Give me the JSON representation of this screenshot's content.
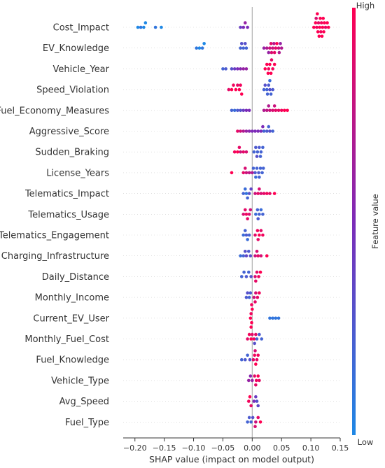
{
  "chart_data": {
    "type": "scatter",
    "subtype": "shap-beeswarm-summary",
    "xlabel": "SHAP value (impact on model output)",
    "xlim": [
      -0.22,
      0.15
    ],
    "x_ticks": [
      -0.2,
      -0.15,
      -0.1,
      -0.05,
      0.0,
      0.05,
      0.1,
      0.15
    ],
    "x_tick_labels": [
      "−0.20",
      "−0.15",
      "−0.10",
      "−0.05",
      "0.00",
      "0.05",
      "0.10",
      "0.15"
    ],
    "grid": false,
    "zero_line": true,
    "colorbar": {
      "label": "Feature value",
      "high_label": "High",
      "low_label": "Low",
      "low_color": "#1e88e5",
      "mid_color": "#7c2bb8",
      "high_color": "#ff0052",
      "placement": "right"
    },
    "features": [
      {
        "name": "Cost_Impact",
        "points": [
          [
            -0.195,
            0.0
          ],
          [
            -0.19,
            0.1
          ],
          [
            -0.185,
            0.0
          ],
          [
            -0.182,
            0.0
          ],
          [
            -0.165,
            0.1
          ],
          [
            -0.155,
            0.0
          ],
          [
            -0.02,
            0.4
          ],
          [
            -0.015,
            0.5
          ],
          [
            -0.012,
            0.6
          ],
          [
            -0.008,
            0.5
          ],
          [
            0.105,
            1.0
          ],
          [
            0.108,
            1.0
          ],
          [
            0.11,
            0.95
          ],
          [
            0.112,
            1.0
          ],
          [
            0.113,
            0.9
          ],
          [
            0.115,
            1.0
          ],
          [
            0.116,
            1.0
          ],
          [
            0.118,
            0.95
          ],
          [
            0.12,
            1.0
          ],
          [
            0.122,
            1.0
          ],
          [
            0.125,
            0.9
          ],
          [
            0.128,
            1.0
          ],
          [
            0.13,
            1.0
          ],
          [
            0.114,
            1.0
          ],
          [
            0.117,
            0.95
          ],
          [
            0.119,
            1.0
          ],
          [
            0.121,
            1.0
          ],
          [
            0.109,
            0.85
          ],
          [
            0.111,
            1.0
          ],
          [
            0.123,
            1.0
          ]
        ]
      },
      {
        "name": "EV_Knowledge",
        "points": [
          [
            -0.095,
            0.1
          ],
          [
            -0.09,
            0.0
          ],
          [
            -0.085,
            0.1
          ],
          [
            -0.082,
            0.0
          ],
          [
            -0.02,
            0.2
          ],
          [
            -0.018,
            0.3
          ],
          [
            -0.015,
            0.2
          ],
          [
            -0.012,
            0.3
          ],
          [
            -0.01,
            0.2
          ],
          [
            0.02,
            0.6
          ],
          [
            0.025,
            0.7
          ],
          [
            0.03,
            0.8
          ],
          [
            0.032,
            0.9
          ],
          [
            0.035,
            0.8
          ],
          [
            0.037,
            0.7
          ],
          [
            0.04,
            0.9
          ],
          [
            0.042,
            1.0
          ],
          [
            0.045,
            0.8
          ],
          [
            0.048,
            0.6
          ],
          [
            0.05,
            0.7
          ],
          [
            0.028,
            0.6
          ],
          [
            0.038,
            0.9
          ],
          [
            0.046,
            0.7
          ],
          [
            0.033,
            0.85
          ]
        ]
      },
      {
        "name": "Vehicle_Year",
        "points": [
          [
            -0.05,
            0.2
          ],
          [
            -0.045,
            0.25
          ],
          [
            -0.035,
            0.3
          ],
          [
            -0.03,
            0.4
          ],
          [
            -0.025,
            0.5
          ],
          [
            -0.02,
            0.55
          ],
          [
            -0.015,
            0.6
          ],
          [
            -0.01,
            0.6
          ],
          [
            0.022,
            1.0
          ],
          [
            0.025,
            1.0
          ],
          [
            0.028,
            0.95
          ],
          [
            0.03,
            1.0
          ],
          [
            0.032,
            1.0
          ],
          [
            0.035,
            0.95
          ],
          [
            0.038,
            1.0
          ],
          [
            0.027,
            1.0
          ],
          [
            0.033,
            0.9
          ]
        ]
      },
      {
        "name": "Speed_Violation",
        "points": [
          [
            -0.04,
            0.9
          ],
          [
            -0.035,
            1.0
          ],
          [
            -0.032,
            0.95
          ],
          [
            -0.028,
            1.0
          ],
          [
            -0.025,
            0.9
          ],
          [
            -0.022,
            1.0
          ],
          [
            -0.02,
            0.95
          ],
          [
            -0.018,
            1.0
          ],
          [
            0.02,
            0.2
          ],
          [
            0.022,
            0.3
          ],
          [
            0.025,
            0.2
          ],
          [
            0.028,
            0.25
          ],
          [
            0.03,
            0.3
          ],
          [
            0.032,
            0.2
          ],
          [
            0.035,
            0.25
          ],
          [
            0.026,
            0.2
          ],
          [
            0.03,
            0.15
          ]
        ]
      },
      {
        "name": "Fuel_Economy_Measures",
        "points": [
          [
            -0.035,
            0.2
          ],
          [
            -0.03,
            0.15
          ],
          [
            -0.025,
            0.25
          ],
          [
            -0.02,
            0.3
          ],
          [
            -0.015,
            0.4
          ],
          [
            -0.01,
            0.5
          ],
          [
            -0.005,
            0.5
          ],
          [
            0.02,
            0.7
          ],
          [
            0.025,
            0.75
          ],
          [
            0.03,
            0.8
          ],
          [
            0.035,
            0.85
          ],
          [
            0.04,
            0.9
          ],
          [
            0.045,
            0.9
          ],
          [
            0.05,
            0.95
          ],
          [
            0.055,
            1.0
          ],
          [
            0.06,
            1.0
          ],
          [
            0.028,
            0.7
          ],
          [
            0.038,
            0.8
          ]
        ]
      },
      {
        "name": "Aggressive_Score",
        "points": [
          [
            -0.025,
            0.9
          ],
          [
            -0.02,
            0.8
          ],
          [
            -0.015,
            0.7
          ],
          [
            -0.01,
            0.6
          ],
          [
            -0.005,
            0.55
          ],
          [
            0.0,
            0.5
          ],
          [
            0.005,
            0.5
          ],
          [
            0.01,
            0.5
          ],
          [
            0.015,
            0.5
          ],
          [
            0.018,
            0.5
          ],
          [
            0.02,
            0.2
          ],
          [
            0.025,
            0.25
          ],
          [
            0.03,
            0.3
          ],
          [
            0.035,
            0.2
          ],
          [
            0.028,
            0.2
          ]
        ]
      },
      {
        "name": "Sudden_Braking",
        "points": [
          [
            -0.03,
            0.95
          ],
          [
            -0.025,
            1.0
          ],
          [
            -0.022,
            0.9
          ],
          [
            -0.02,
            0.8
          ],
          [
            -0.015,
            0.9
          ],
          [
            -0.01,
            0.85
          ],
          [
            0.003,
            0.2
          ],
          [
            0.006,
            0.25
          ],
          [
            0.009,
            0.2
          ],
          [
            0.012,
            0.25
          ],
          [
            0.015,
            0.2
          ],
          [
            0.018,
            0.2
          ],
          [
            0.008,
            0.3
          ],
          [
            0.014,
            0.2
          ]
        ]
      },
      {
        "name": "License_Years",
        "points": [
          [
            -0.035,
            1.0
          ],
          [
            -0.015,
            0.9
          ],
          [
            -0.012,
            0.85
          ],
          [
            -0.01,
            0.8
          ],
          [
            -0.005,
            0.75
          ],
          [
            0.0,
            0.7
          ],
          [
            0.002,
            0.2
          ],
          [
            0.005,
            0.25
          ],
          [
            0.008,
            0.2
          ],
          [
            0.011,
            0.25
          ],
          [
            0.014,
            0.2
          ],
          [
            0.017,
            0.2
          ],
          [
            0.019,
            0.2
          ],
          [
            0.006,
            0.15
          ],
          [
            0.012,
            0.2
          ]
        ]
      },
      {
        "name": "Telematics_Impact",
        "points": [
          [
            -0.015,
            0.2
          ],
          [
            -0.012,
            0.15
          ],
          [
            -0.01,
            0.1
          ],
          [
            -0.008,
            0.2
          ],
          [
            -0.005,
            0.3
          ],
          [
            -0.002,
            0.35
          ],
          [
            0.005,
            0.8
          ],
          [
            0.01,
            0.9
          ],
          [
            0.015,
            0.85
          ],
          [
            0.02,
            0.9
          ],
          [
            0.025,
            0.95
          ],
          [
            0.03,
            0.9
          ],
          [
            0.038,
            1.0
          ],
          [
            0.012,
            0.85
          ]
        ]
      },
      {
        "name": "Telematics_Usage",
        "points": [
          [
            -0.015,
            0.85
          ],
          [
            -0.012,
            0.9
          ],
          [
            -0.01,
            0.95
          ],
          [
            -0.008,
            0.9
          ],
          [
            -0.005,
            0.85
          ],
          [
            -0.003,
            0.8
          ],
          [
            0.006,
            0.15
          ],
          [
            0.009,
            0.2
          ],
          [
            0.012,
            0.2
          ],
          [
            0.015,
            0.15
          ],
          [
            0.018,
            0.2
          ],
          [
            0.01,
            0.25
          ]
        ]
      },
      {
        "name": "Telematics_Engagement",
        "points": [
          [
            -0.015,
            0.15
          ],
          [
            -0.012,
            0.2
          ],
          [
            -0.01,
            0.25
          ],
          [
            -0.008,
            0.15
          ],
          [
            -0.005,
            0.2
          ],
          [
            0.005,
            0.9
          ],
          [
            0.009,
            0.95
          ],
          [
            0.012,
            1.0
          ],
          [
            0.015,
            0.9
          ],
          [
            0.018,
            0.95
          ],
          [
            0.01,
            0.9
          ]
        ]
      },
      {
        "name": "Charging_Infrastructure",
        "points": [
          [
            -0.02,
            0.15
          ],
          [
            -0.015,
            0.2
          ],
          [
            -0.012,
            0.3
          ],
          [
            -0.01,
            0.35
          ],
          [
            -0.006,
            0.25
          ],
          [
            -0.003,
            0.3
          ],
          [
            0.005,
            0.8
          ],
          [
            0.01,
            0.9
          ],
          [
            0.015,
            0.85
          ],
          [
            0.025,
            1.0
          ],
          [
            0.008,
            0.85
          ]
        ]
      },
      {
        "name": "Daily_Distance",
        "points": [
          [
            -0.018,
            0.2
          ],
          [
            -0.014,
            0.2
          ],
          [
            -0.01,
            0.25
          ],
          [
            -0.006,
            0.2
          ],
          [
            -0.002,
            0.3
          ],
          [
            0.005,
            0.85
          ],
          [
            0.008,
            0.9
          ],
          [
            0.011,
            0.95
          ],
          [
            0.014,
            1.0
          ],
          [
            0.006,
            0.9
          ]
        ]
      },
      {
        "name": "Monthly_Income",
        "points": [
          [
            -0.01,
            0.25
          ],
          [
            -0.008,
            0.3
          ],
          [
            -0.005,
            0.2
          ],
          [
            -0.003,
            0.25
          ],
          [
            0.003,
            0.8
          ],
          [
            0.006,
            0.85
          ],
          [
            0.009,
            0.9
          ],
          [
            0.012,
            0.95
          ],
          [
            0.005,
            0.9
          ]
        ]
      },
      {
        "name": "Current_EV_User",
        "points": [
          [
            -0.003,
            1.0
          ],
          [
            -0.002,
            0.95
          ],
          [
            -0.001,
            1.0
          ],
          [
            0.0,
            1.0
          ],
          [
            -0.002,
            1.0
          ],
          [
            -0.001,
            0.95
          ],
          [
            0.03,
            0.1
          ],
          [
            0.035,
            0.1
          ],
          [
            0.04,
            0.1
          ],
          [
            0.045,
            0.1
          ]
        ]
      },
      {
        "name": "Monthly_Fuel_Cost",
        "points": [
          [
            -0.008,
            0.9
          ],
          [
            -0.005,
            0.95
          ],
          [
            -0.002,
            1.0
          ],
          [
            0.0,
            0.9
          ],
          [
            0.003,
            0.95
          ],
          [
            0.006,
            0.9
          ],
          [
            0.008,
            0.2
          ],
          [
            0.012,
            0.25
          ],
          [
            0.016,
            0.2
          ],
          [
            0.004,
            0.3
          ]
        ]
      },
      {
        "name": "Fuel_Knowledge",
        "points": [
          [
            -0.018,
            0.2
          ],
          [
            -0.012,
            0.25
          ],
          [
            -0.008,
            0.2
          ],
          [
            -0.004,
            0.3
          ],
          [
            0.002,
            0.9
          ],
          [
            0.004,
            0.95
          ],
          [
            0.006,
            1.0
          ],
          [
            0.008,
            0.9
          ],
          [
            0.01,
            0.95
          ],
          [
            0.005,
            0.85
          ]
        ]
      },
      {
        "name": "Vehicle_Type",
        "points": [
          [
            -0.006,
            0.6
          ],
          [
            -0.003,
            0.55
          ],
          [
            0.0,
            0.6
          ],
          [
            0.004,
            0.9
          ],
          [
            0.007,
            0.95
          ],
          [
            0.01,
            1.0
          ],
          [
            0.012,
            0.9
          ],
          [
            0.006,
            0.9
          ]
        ]
      },
      {
        "name": "Avg_Speed",
        "points": [
          [
            -0.006,
            0.95
          ],
          [
            -0.004,
            1.0
          ],
          [
            -0.002,
            0.9
          ],
          [
            0.003,
            0.5
          ],
          [
            0.006,
            0.4
          ],
          [
            0.008,
            0.3
          ],
          [
            0.01,
            0.35
          ]
        ]
      },
      {
        "name": "Fuel_Type",
        "points": [
          [
            -0.008,
            0.2
          ],
          [
            -0.005,
            0.25
          ],
          [
            -0.002,
            0.2
          ],
          [
            0.001,
            0.3
          ],
          [
            0.006,
            0.8
          ],
          [
            0.01,
            0.9
          ],
          [
            0.014,
            1.0
          ],
          [
            0.005,
            0.85
          ]
        ]
      }
    ]
  }
}
